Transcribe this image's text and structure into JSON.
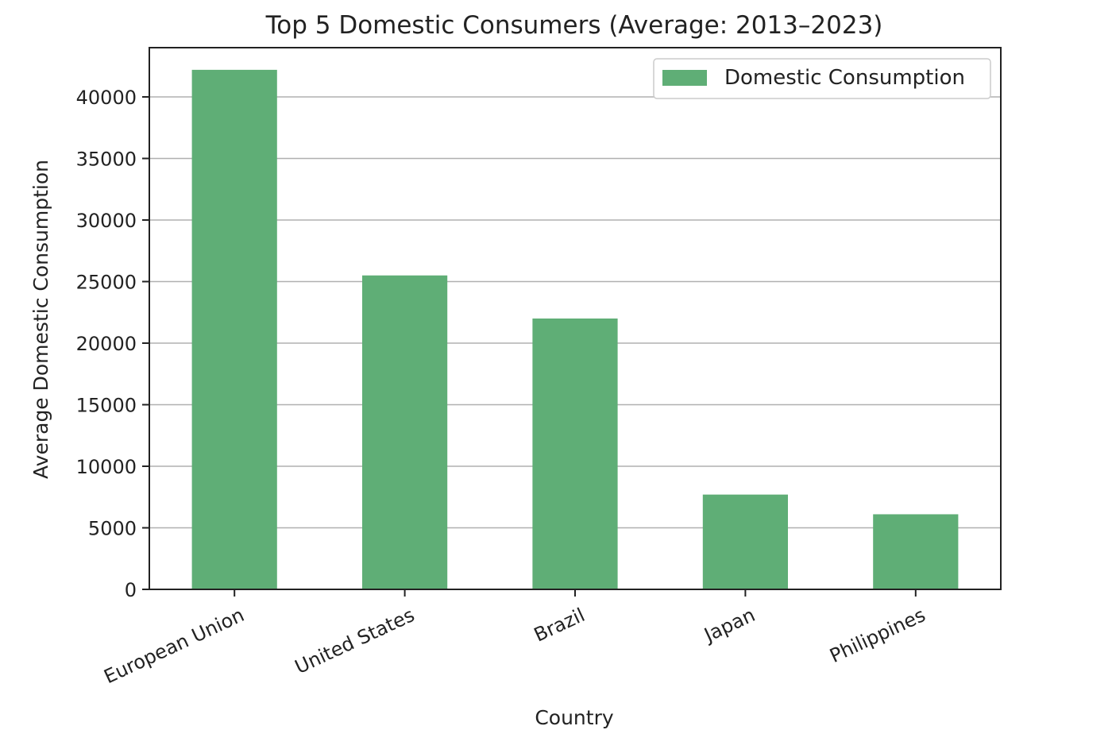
{
  "chart_data": {
    "type": "bar",
    "title": "Top 5 Domestic Consumers (Average: 2013–2023)",
    "xlabel": "Country",
    "ylabel": "Average Domestic Consumption",
    "categories": [
      "European Union",
      "United States",
      "Brazil",
      "Japan",
      "Philippines"
    ],
    "series": [
      {
        "name": "Domestic Consumption",
        "values": [
          42200,
          25500,
          22000,
          7700,
          6100
        ]
      }
    ],
    "ylim": [
      0,
      44000
    ],
    "yticks": [
      0,
      5000,
      10000,
      15000,
      20000,
      25000,
      30000,
      35000,
      40000
    ],
    "grid": "y",
    "legend_position": "top-right",
    "bar_color": "#5fae76",
    "grid_color": "#b0b0b0"
  }
}
